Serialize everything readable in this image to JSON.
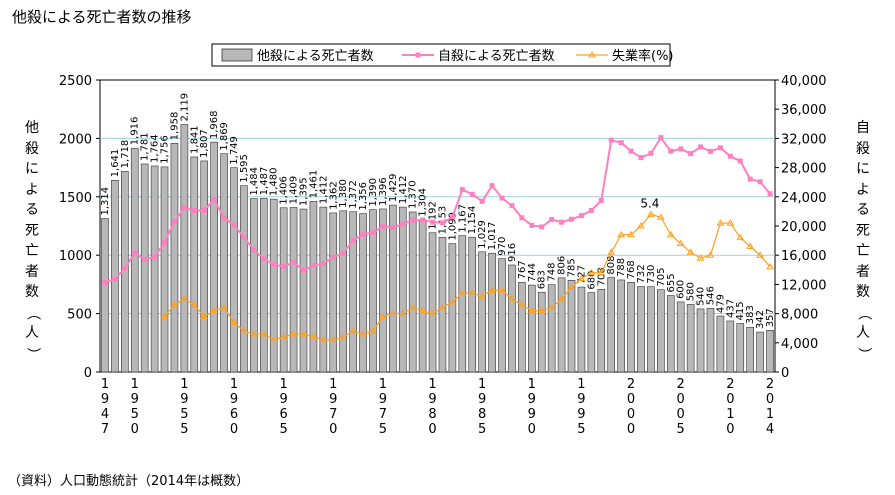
{
  "title": "他殺による死亡者数の推移",
  "source": "（資料）人口動態統計（2014年は概数）",
  "chart_data": {
    "type": "bar+line",
    "title": "他殺による死亡者数の推移",
    "years": [
      1947,
      1948,
      1949,
      1950,
      1951,
      1952,
      1953,
      1954,
      1955,
      1956,
      1957,
      1958,
      1959,
      1960,
      1961,
      1962,
      1963,
      1964,
      1965,
      1966,
      1967,
      1968,
      1969,
      1970,
      1971,
      1972,
      1973,
      1974,
      1975,
      1976,
      1977,
      1978,
      1979,
      1980,
      1981,
      1982,
      1983,
      1984,
      1985,
      1986,
      1987,
      1988,
      1989,
      1990,
      1991,
      1992,
      1993,
      1994,
      1995,
      1996,
      1997,
      1998,
      1999,
      2000,
      2001,
      2002,
      2003,
      2004,
      2005,
      2006,
      2007,
      2008,
      2009,
      2010,
      2011,
      2012,
      2013,
      2014
    ],
    "x_tick_labels": [
      "1947",
      "1950",
      "1955",
      "1960",
      "1965",
      "1970",
      "1975",
      "1980",
      "1985",
      "1990",
      "1995",
      "2000",
      "2005",
      "2010",
      "2014"
    ],
    "homicide": {
      "name": "他殺による死亡者数",
      "values": [
        1314,
        1641,
        1718,
        1916,
        1781,
        1764,
        1756,
        1958,
        2119,
        1841,
        1807,
        1968,
        1869,
        1749,
        1595,
        1484,
        1487,
        1480,
        1406,
        1409,
        1395,
        1461,
        1412,
        1362,
        1380,
        1372,
        1356,
        1390,
        1396,
        1429,
        1412,
        1370,
        1304,
        1192,
        1153,
        1099,
        1167,
        1154,
        1029,
        1017,
        970,
        916,
        767,
        744,
        683,
        748,
        806,
        785,
        727,
        680,
        708,
        808,
        788,
        768,
        732,
        730,
        705,
        655,
        600,
        580,
        540,
        546,
        479,
        437,
        415,
        383,
        342,
        357
      ],
      "labels_shown": [
        "1,314",
        "1,641",
        "1,718",
        "1,916",
        "1,781",
        "1,764",
        "1,756",
        "1,958",
        "2,119",
        "1,841",
        "1,807",
        "1,968",
        "1,869",
        "1,749",
        "1,595",
        "1,484",
        "1,487",
        "1,480",
        "1,406",
        "1,409",
        "1,395",
        "1,461",
        "1,412",
        "1,362",
        "1,380",
        "1,372",
        "1,356",
        "1,390",
        "1,396",
        "1,429",
        "1,412",
        "1,370",
        "1,304",
        "1,192",
        "1,153",
        "1,099",
        "1,167",
        "1,154",
        "1,029",
        "1,017",
        "970",
        "916",
        "767",
        "744",
        "683",
        "748",
        "806",
        "785",
        "727",
        "680",
        "708",
        "808",
        "788",
        "768",
        "732",
        "730",
        "705",
        "655",
        "600",
        "580",
        "540",
        "546",
        "479",
        "437",
        "415",
        "383",
        "342",
        "357"
      ],
      "color": "#b8b8b8"
    },
    "suicide": {
      "name": "自殺による死亡者数",
      "values": [
        12262,
        12753,
        14201,
        16311,
        15415,
        15776,
        17731,
        20635,
        22477,
        22107,
        22136,
        23641,
        21090,
        20143,
        18446,
        16724,
        15490,
        14707,
        14444,
        15050,
        13906,
        14601,
        14844,
        15728,
        16239,
        18015,
        18859,
        19105,
        19975,
        19786,
        20269,
        20788,
        20823,
        20542,
        20434,
        21228,
        24985,
        24344,
        23383,
        25524,
        23831,
        22795,
        21125,
        20088,
        19875,
        20893,
        20516,
        20923,
        21420,
        22138,
        23494,
        31755,
        31413,
        30251,
        29375,
        29949,
        32109,
        30247,
        30553,
        29921,
        30827,
        30229,
        30707,
        29554,
        28896,
        26433,
        26063,
        24417
      ],
      "color": "#ff80c0"
    },
    "unemployment": {
      "name": "失業率(%)",
      "start_year": 1953,
      "values": [
        1.9,
        2.3,
        2.5,
        2.3,
        1.9,
        2.1,
        2.2,
        1.7,
        1.4,
        1.3,
        1.3,
        1.1,
        1.2,
        1.3,
        1.3,
        1.2,
        1.1,
        1.1,
        1.2,
        1.4,
        1.3,
        1.4,
        1.9,
        2.0,
        2.0,
        2.2,
        2.1,
        2.0,
        2.2,
        2.4,
        2.7,
        2.7,
        2.6,
        2.8,
        2.8,
        2.5,
        2.3,
        2.1,
        2.1,
        2.2,
        2.5,
        2.9,
        3.2,
        3.4,
        3.4,
        4.1,
        4.7,
        4.7,
        5.0,
        5.4,
        5.3,
        4.7,
        4.4,
        4.1,
        3.9,
        4.0,
        5.1,
        5.1,
        4.6,
        4.3,
        4.0,
        3.6
      ],
      "annotation": "5.4",
      "color": "#ffa020"
    },
    "left_axis": {
      "label": "他殺による死亡者数（人）",
      "min": 0,
      "max": 2500,
      "ticks": [
        "0",
        "500",
        "1000",
        "1500",
        "2000",
        "2500"
      ]
    },
    "right_axis": {
      "label": "自殺による死亡者数（人）",
      "min": 0,
      "max": 40000,
      "ticks": [
        "0",
        "4,000",
        "8,000",
        "12,000",
        "16,000",
        "20,000",
        "24,000",
        "28,000",
        "32,000",
        "36,000",
        "40,000"
      ]
    },
    "legend": [
      "他殺による死亡者数",
      "自殺による死亡者数",
      "失業率(%)"
    ]
  }
}
